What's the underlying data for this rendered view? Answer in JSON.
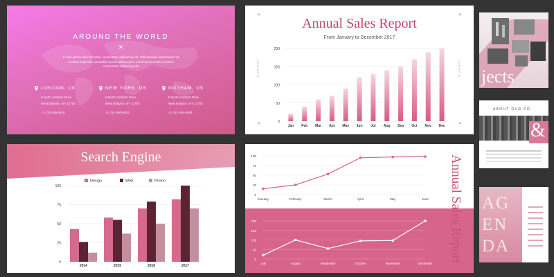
{
  "contact_slide": {
    "title": "AROUND THE WORLD",
    "close_glyph": "✕",
    "intro": "Lorem ipsum dolor sit amet, consectetur adipiscing elit. Pellentesque elementum nisl in tellus imperdiet, at porttitor purus ullamcorper. Lorem ipsum dolor sit amet, consectetur adipiscing elit.",
    "offices": [
      {
        "city": "LONDON, UK",
        "address_1": "9 North Amherst Drive",
        "address_2": "West Babylon, NY 11704",
        "phone": "+1 212-456-6618"
      },
      {
        "city": "NEW YORK, US",
        "address_1": "9 North Amherst Drive",
        "address_2": "West Babylon, NY 11704",
        "phone": "+1 212-456-6618"
      },
      {
        "city": "GOTHAM, US",
        "address_1": "9 North Amherst Drive",
        "address_2": "West Babylon, NY 11704",
        "phone": "+1 212-456-6618"
      }
    ],
    "pin_icon": "map-pin-icon"
  },
  "sales_slide": {
    "title": "Annual Sales Report",
    "subtitle": "From January to December 2017",
    "side_label": "LONDON",
    "corner_glyph": "✕"
  },
  "search_slide": {
    "title": "Search Engine"
  },
  "report_slide": {
    "title": "Annual Sales Report"
  },
  "thumbnails": {
    "projects_word": "jects",
    "about_header": "ABOUT OUR CO",
    "ampersand": "&",
    "agenda_letters": [
      "AG",
      "EN",
      "DA"
    ]
  },
  "colors": {
    "accent": "#c2466e",
    "pink_gradient_top": "#f67ae9",
    "pink_band": "#d6648b",
    "bar_light": "#f4d7e0",
    "bar_dark": "#d85a85"
  },
  "chart_data": [
    {
      "type": "bar",
      "title": "Annual Sales Report",
      "subtitle": "From January to December 2017",
      "categories": [
        "Jan",
        "Feb",
        "Mar",
        "Apr",
        "May",
        "Jun",
        "Jul",
        "Aug",
        "Sep",
        "Oct",
        "Nov",
        "Dec"
      ],
      "values": [
        20,
        40,
        60,
        70,
        90,
        120,
        130,
        140,
        150,
        170,
        190,
        200
      ],
      "ylim": [
        0,
        200
      ],
      "yticks": [
        0,
        50,
        100,
        150,
        200
      ],
      "grid": true
    },
    {
      "type": "bar",
      "title": "Search Engine",
      "categories": [
        "2014",
        "2015",
        "2016",
        "2017"
      ],
      "series": [
        {
          "name": "Design",
          "color": "#d66a8c",
          "values": [
            43,
            58,
            70,
            82
          ]
        },
        {
          "name": "Web",
          "color": "#5a2435",
          "values": [
            26,
            55,
            79,
            100
          ]
        },
        {
          "name": "Promo",
          "color": "#c48f9d",
          "values": [
            12,
            37,
            50,
            70
          ]
        }
      ],
      "ylim": [
        0,
        100
      ],
      "yticks": [
        0,
        25,
        50,
        75,
        100
      ],
      "legend": "top-center",
      "grid": true
    },
    {
      "type": "line",
      "categories": [
        "January",
        "February",
        "March",
        "April",
        "May",
        "June"
      ],
      "values": [
        15,
        25,
        53,
        95,
        97,
        98
      ],
      "ylim": [
        0,
        100
      ],
      "yticks": [
        0,
        25,
        50,
        75,
        100
      ],
      "color": "#d6648b",
      "grid": true
    },
    {
      "type": "line",
      "categories": [
        "July",
        "August",
        "September",
        "October",
        "November",
        "December"
      ],
      "values": [
        20,
        100,
        55,
        95,
        97,
        200
      ],
      "ylim": [
        0,
        200
      ],
      "yticks": [
        0,
        50,
        100,
        150,
        200
      ],
      "color": "#ffffff",
      "grid": true
    }
  ]
}
